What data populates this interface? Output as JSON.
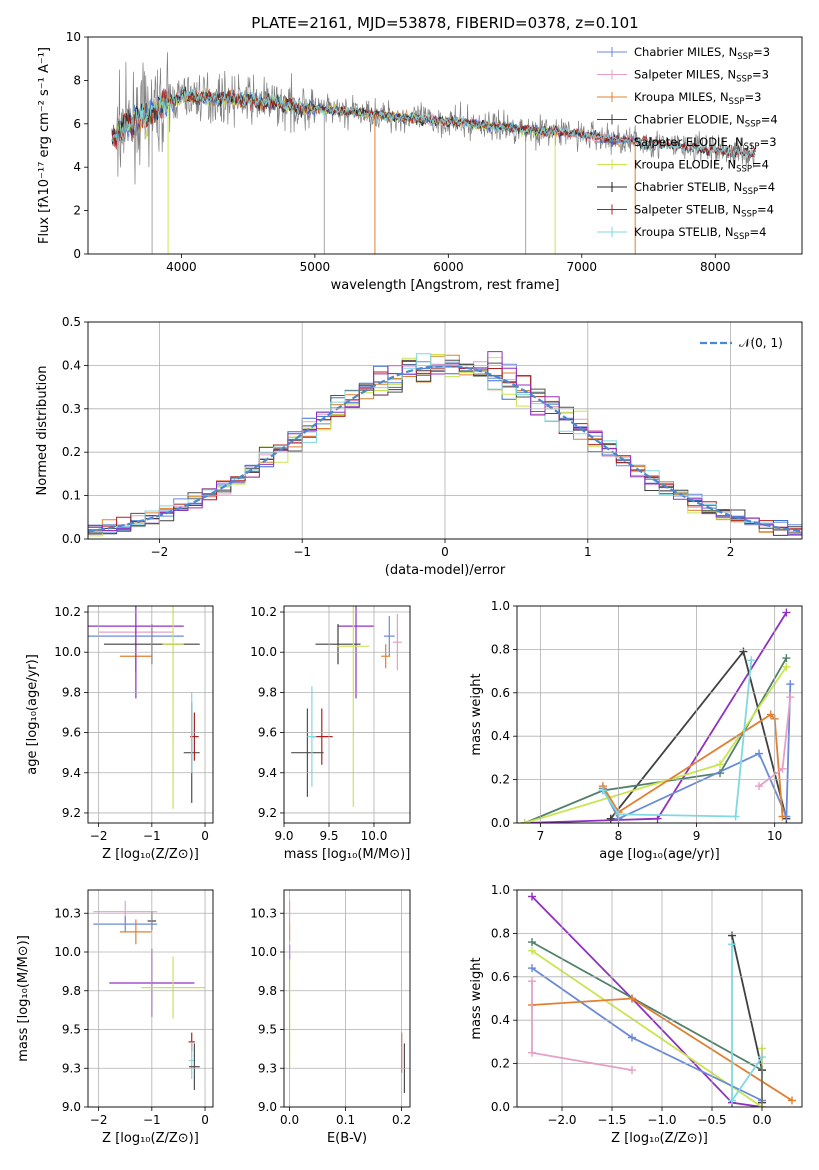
{
  "chart_data": [
    {
      "id": "spectrum",
      "type": "line",
      "title": "PLATE=2161, MJD=53878, FIBERID=0378, z=0.101",
      "xlabel": "wavelength [Angstrom, rest frame]",
      "ylabel": "Flux [fλ10⁻¹⁷ erg cm⁻² s⁻¹ A⁻¹]",
      "xlim": [
        3300,
        8650
      ],
      "ylim": [
        0,
        10
      ],
      "xticks": [
        4000,
        5000,
        6000,
        7000,
        8000
      ],
      "yticks": [
        0,
        2,
        4,
        6,
        8,
        10
      ],
      "grid": false,
      "legend_position": "top-right",
      "data_color": "#808080",
      "continuum": {
        "x": [
          3500,
          3700,
          4000,
          4500,
          5000,
          5500,
          6000,
          6500,
          7000,
          7500,
          8000,
          8300
        ],
        "y": [
          5.7,
          6.3,
          7.3,
          7.1,
          6.7,
          6.4,
          6.1,
          5.8,
          5.5,
          5.1,
          4.8,
          4.6
        ]
      },
      "series": [
        {
          "name": "Chabrier MILES, N",
          "sub": "SSP",
          "tail": "=3",
          "color": "#6a8ad8",
          "end": 7400
        },
        {
          "name": "Salpeter MILES, N",
          "sub": "SSP",
          "tail": "=3",
          "color": "#e6a0c8",
          "end": 7400
        },
        {
          "name": "Kroupa MILES, N",
          "sub": "SSP",
          "tail": "=3",
          "color": "#e08030",
          "end": 7400
        },
        {
          "name": "Chabrier ELODIE, N",
          "sub": "SSP",
          "tail": "=4",
          "color": "#404040",
          "end": 6800
        },
        {
          "name": "Salpeter ELODIE, N",
          "sub": "SSP",
          "tail": "=3",
          "color": "#3a6ed0",
          "end": 6800
        },
        {
          "name": "Kroupa ELODIE, N",
          "sub": "SSP",
          "tail": "=4",
          "color": "#c8e650",
          "end": 6800
        },
        {
          "name": "Chabrier STELIB, N",
          "sub": "SSP",
          "tail": "=4",
          "color": "#202020",
          "end": 8300
        },
        {
          "name": "Salpeter STELIB, N",
          "sub": "SSP",
          "tail": "=4",
          "color": "#b02020",
          "end": 8300
        },
        {
          "name": "Kroupa STELIB, N",
          "sub": "SSP",
          "tail": "=4",
          "color": "#80d8e0",
          "end": 8300
        }
      ]
    },
    {
      "id": "residuals",
      "type": "line",
      "xlabel": "(data-model)/error",
      "ylabel": "Normed distribution",
      "xlim": [
        -2.5,
        2.5
      ],
      "ylim": [
        0,
        0.5
      ],
      "xticks": [
        -2,
        -1,
        0,
        1,
        2
      ],
      "yticks": [
        0.0,
        0.1,
        0.2,
        0.3,
        0.4,
        0.5
      ],
      "grid": true,
      "legend_position": "top-right",
      "reference": {
        "name": "𝒩(0, 1)",
        "color": "#4a88d0",
        "mean": 0,
        "sigma": 1
      },
      "bin_width": 0.1,
      "series_colors": [
        "#6a8ad8",
        "#e6a0c8",
        "#e08030",
        "#404040",
        "#3a6ed0",
        "#c8e650",
        "#505050",
        "#b02020",
        "#80d8e0",
        "#9030c0"
      ]
    },
    {
      "id": "age-vs-z",
      "type": "scatter",
      "xlabel": "Z [log₁₀(Z/Z⊙)]",
      "ylabel": "age  [log₁₀(age/yr)]",
      "xlim": [
        -2.2,
        0.15
      ],
      "ylim": [
        9.15,
        10.23
      ],
      "xticks": [
        -2,
        -1,
        0
      ],
      "yticks": [
        9.2,
        9.4,
        9.6,
        9.8,
        10.0,
        10.2
      ],
      "grid": true,
      "points": [
        {
          "x": -1.3,
          "y": 10.08,
          "xerr": 0.9,
          "yerr": 0.05,
          "color": "#6a8ad8"
        },
        {
          "x": -1.3,
          "y": 10.1,
          "xerr": 0.7,
          "yerr": 0.2,
          "color": "#e6a0c8"
        },
        {
          "x": -1.3,
          "y": 9.98,
          "xerr": 0.3,
          "yerr": 0.08,
          "color": "#e08030"
        },
        {
          "x": -1.3,
          "y": 10.13,
          "xerr": 0.9,
          "yerr": 0.36,
          "color": "#9030c0"
        },
        {
          "x": -1.0,
          "y": 10.04,
          "xerr": 0.9,
          "yerr": 0.1,
          "color": "#404040"
        },
        {
          "x": -0.6,
          "y": 10.04,
          "xerr": 0.2,
          "yerr": 0.82,
          "color": "#c8e650"
        },
        {
          "x": -0.25,
          "y": 9.5,
          "xerr": 0.15,
          "yerr": 0.25,
          "color": "#505050"
        },
        {
          "x": -0.2,
          "y": 9.58,
          "xerr": 0.08,
          "yerr": 0.12,
          "color": "#b02020"
        },
        {
          "x": -0.25,
          "y": 9.6,
          "xerr": 0.03,
          "yerr": 0.2,
          "color": "#80d8e0"
        }
      ]
    },
    {
      "id": "age-vs-mass",
      "type": "scatter",
      "xlabel": "mass [log₁₀(M/M⊙)]",
      "ylabel": "",
      "xlim": [
        9.0,
        10.4
      ],
      "ylim": [
        9.15,
        10.23
      ],
      "xticks": [
        9.0,
        9.5,
        10.0
      ],
      "yticks": [
        9.2,
        9.4,
        9.6,
        9.8,
        10.0,
        10.2
      ],
      "grid": true,
      "points": [
        {
          "x": 10.17,
          "y": 10.08,
          "xerr": 0.06,
          "yerr": 0.1,
          "color": "#6a8ad8"
        },
        {
          "x": 10.26,
          "y": 10.05,
          "xerr": 0.05,
          "yerr": 0.14,
          "color": "#e6a0c8"
        },
        {
          "x": 10.13,
          "y": 9.98,
          "xerr": 0.05,
          "yerr": 0.06,
          "color": "#e08030"
        },
        {
          "x": 9.8,
          "y": 10.13,
          "xerr": 0.2,
          "yerr": 0.36,
          "color": "#9030c0"
        },
        {
          "x": 9.6,
          "y": 10.04,
          "xerr": 0.25,
          "yerr": 0.1,
          "color": "#404040"
        },
        {
          "x": 9.77,
          "y": 10.03,
          "xerr": 0.18,
          "yerr": 0.8,
          "color": "#c8e650"
        },
        {
          "x": 9.26,
          "y": 9.5,
          "xerr": 0.18,
          "yerr": 0.22,
          "color": "#505050"
        },
        {
          "x": 9.42,
          "y": 9.58,
          "xerr": 0.12,
          "yerr": 0.14,
          "color": "#b02020"
        },
        {
          "x": 9.31,
          "y": 9.58,
          "xerr": 0.05,
          "yerr": 0.25,
          "color": "#80d8e0"
        }
      ]
    },
    {
      "id": "mass-weight-vs-age",
      "type": "line",
      "xlabel": "age  [log₁₀(age/yr)]",
      "ylabel": "mass weight",
      "xlim": [
        6.7,
        10.35
      ],
      "ylim": [
        0,
        1
      ],
      "xticks": [
        7,
        8,
        9,
        10
      ],
      "yticks": [
        0.0,
        0.2,
        0.4,
        0.6,
        0.8,
        1.0
      ],
      "grid": true,
      "series": [
        {
          "color": "#9030c0",
          "x": [
            6.8,
            8.5,
            10.15
          ],
          "y": [
            0.0,
            0.02,
            0.97
          ]
        },
        {
          "color": "#404040",
          "x": [
            7.9,
            9.6,
            10.15
          ],
          "y": [
            0.02,
            0.79,
            0.02
          ]
        },
        {
          "color": "#50806a",
          "x": [
            6.8,
            7.8,
            9.3,
            10.15
          ],
          "y": [
            0.0,
            0.15,
            0.23,
            0.76
          ]
        },
        {
          "color": "#c8e650",
          "x": [
            6.8,
            9.3,
            10.15
          ],
          "y": [
            0.0,
            0.27,
            0.72
          ]
        },
        {
          "color": "#6a8ad8",
          "x": [
            7.8,
            8.0,
            9.8,
            10.15,
            10.2
          ],
          "y": [
            0.16,
            0.02,
            0.32,
            0.03,
            0.64
          ]
        },
        {
          "color": "#e08030",
          "x": [
            7.8,
            8.0,
            9.95,
            10.0,
            10.1
          ],
          "y": [
            0.17,
            0.05,
            0.5,
            0.48,
            0.03
          ]
        },
        {
          "color": "#e6a0c8",
          "x": [
            9.8,
            10.1,
            10.2
          ],
          "y": [
            0.17,
            0.25,
            0.58
          ]
        },
        {
          "color": "#80d8e0",
          "x": [
            7.8,
            8.0,
            9.5,
            9.7
          ],
          "y": [
            0.15,
            0.04,
            0.03,
            0.75
          ]
        }
      ]
    },
    {
      "id": "mass-vs-z",
      "type": "scatter",
      "xlabel": "Z [log₁₀(Z/Z⊙)]",
      "ylabel": "mass [log₁₀(M/M⊙)]",
      "xlim": [
        -2.2,
        0.15
      ],
      "ylim": [
        9.0,
        10.4
      ],
      "xticks": [
        -2,
        -1,
        0
      ],
      "yticks": [
        9.0,
        9.25,
        9.5,
        9.75,
        10.0,
        10.25
      ],
      "grid": true,
      "points": [
        {
          "x": -1.5,
          "y": 10.26,
          "xerr": 0.6,
          "yerr": 0.07,
          "color": "#e6a0c8"
        },
        {
          "x": -1.5,
          "y": 10.18,
          "xerr": 0.6,
          "yerr": 0.05,
          "color": "#6a8ad8"
        },
        {
          "x": -1.3,
          "y": 10.13,
          "xerr": 0.3,
          "yerr": 0.08,
          "color": "#e08030"
        },
        {
          "x": -1.0,
          "y": 10.2,
          "xerr": 0.08,
          "yerr": 0.06,
          "color": "#404040"
        },
        {
          "x": -1.0,
          "y": 9.8,
          "xerr": 0.8,
          "yerr": 0.22,
          "color": "#9030c0"
        },
        {
          "x": -0.6,
          "y": 9.77,
          "xerr": 0.6,
          "yerr": 0.2,
          "color": "#c8e650"
        },
        {
          "x": -0.25,
          "y": 9.42,
          "xerr": 0.06,
          "yerr": 0.06,
          "color": "#b02020"
        },
        {
          "x": -0.25,
          "y": 9.3,
          "xerr": 0.05,
          "yerr": 0.12,
          "color": "#80d8e0"
        },
        {
          "x": -0.2,
          "y": 9.26,
          "xerr": 0.1,
          "yerr": 0.15,
          "color": "#505050"
        }
      ]
    },
    {
      "id": "mass-vs-ebv",
      "type": "scatter",
      "xlabel": "E(B-V)",
      "ylabel": "",
      "xlim": [
        -0.01,
        0.215
      ],
      "ylim": [
        9.0,
        10.4
      ],
      "xticks": [
        0.0,
        0.1,
        0.2
      ],
      "yticks": [
        9.0,
        9.25,
        9.5,
        9.75,
        10.0,
        10.25
      ],
      "grid": true,
      "points": [
        {
          "x": 0.0,
          "y": 10.26,
          "xerr": 0.0,
          "yerr": 0.07,
          "color": "#e6a0c8"
        },
        {
          "x": 0.0,
          "y": 10.13,
          "xerr": 0.0,
          "yerr": 0.06,
          "color": "#e08030"
        },
        {
          "x": 0.0,
          "y": 10.0,
          "xerr": 0.0,
          "yerr": 0.05,
          "color": "#9030c0"
        },
        {
          "x": 0.0,
          "y": 9.6,
          "xerr": 0.0,
          "yerr": 0.35,
          "color": "#c8e650"
        },
        {
          "x": 0.2,
          "y": 9.35,
          "xerr": 0.0,
          "yerr": 0.13,
          "color": "#b02020"
        },
        {
          "x": 0.205,
          "y": 9.25,
          "xerr": 0.0,
          "yerr": 0.16,
          "color": "#505050"
        }
      ]
    },
    {
      "id": "mass-weight-vs-z",
      "type": "line",
      "xlabel": "Z [log₁₀(Z/Z⊙)]",
      "ylabel": "mass weight",
      "xlim": [
        -2.45,
        0.4
      ],
      "ylim": [
        0,
        1
      ],
      "xticks": [
        -2.0,
        -1.5,
        -1.0,
        -0.5,
        0.0
      ],
      "yticks": [
        0.0,
        0.2,
        0.4,
        0.6,
        0.8,
        1.0
      ],
      "grid": true,
      "series": [
        {
          "color": "#9030c0",
          "x": [
            -2.3,
            -1.3,
            -0.3,
            0.0
          ],
          "y": [
            0.97,
            0.5,
            0.02,
            0.0
          ]
        },
        {
          "color": "#50806a",
          "x": [
            -2.3,
            0.0
          ],
          "y": [
            0.76,
            0.17
          ]
        },
        {
          "color": "#c8e650",
          "x": [
            -2.3,
            0.0,
            0.0
          ],
          "y": [
            0.72,
            0.0,
            0.27
          ]
        },
        {
          "color": "#6a8ad8",
          "x": [
            -2.3,
            -1.3,
            0.0
          ],
          "y": [
            0.64,
            0.32,
            0.03
          ]
        },
        {
          "color": "#e08030",
          "x": [
            -2.3,
            -1.3,
            0.3
          ],
          "y": [
            0.47,
            0.5,
            0.03
          ]
        },
        {
          "color": "#e6a0c8",
          "x": [
            -2.3,
            -2.3,
            -1.3
          ],
          "y": [
            0.58,
            0.25,
            0.17
          ]
        },
        {
          "color": "#404040",
          "x": [
            -0.3,
            0.0,
            0.0
          ],
          "y": [
            0.79,
            0.17,
            0.02
          ]
        },
        {
          "color": "#80d8e0",
          "x": [
            -0.3,
            -0.3,
            0.0
          ],
          "y": [
            0.75,
            0.03,
            0.23
          ]
        }
      ]
    }
  ]
}
